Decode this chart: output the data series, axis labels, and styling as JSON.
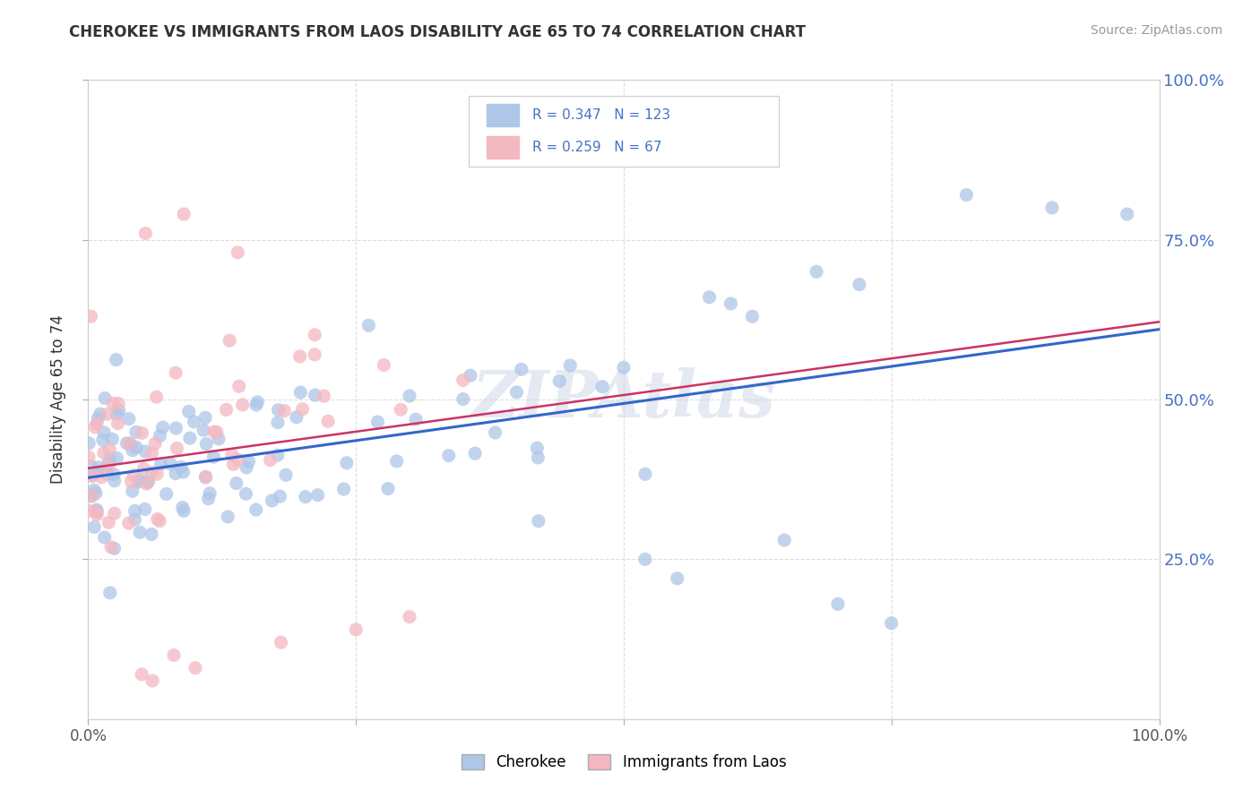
{
  "title": "CHEROKEE VS IMMIGRANTS FROM LAOS DISABILITY AGE 65 TO 74 CORRELATION CHART",
  "source": "Source: ZipAtlas.com",
  "ylabel": "Disability Age 65 to 74",
  "legend_entries": [
    {
      "label": "Cherokee",
      "R": "0.347",
      "N": "123",
      "color": "#aec6e8"
    },
    {
      "label": "Immigrants from Laos",
      "R": "0.259",
      "N": "67",
      "color": "#f4b8c1"
    }
  ],
  "watermark": "ZIPAtlas",
  "cherokee_color": "#aec6e8",
  "laos_color": "#f4b8c1",
  "cherokee_line_color": "#3366cc",
  "laos_line_color": "#cc3366",
  "background_color": "#ffffff",
  "grid_color": "#dddddd",
  "ytick_color": "#4472c4",
  "cherokee_seed": 42,
  "laos_seed": 99,
  "n_cherokee": 123,
  "n_laos": 67
}
